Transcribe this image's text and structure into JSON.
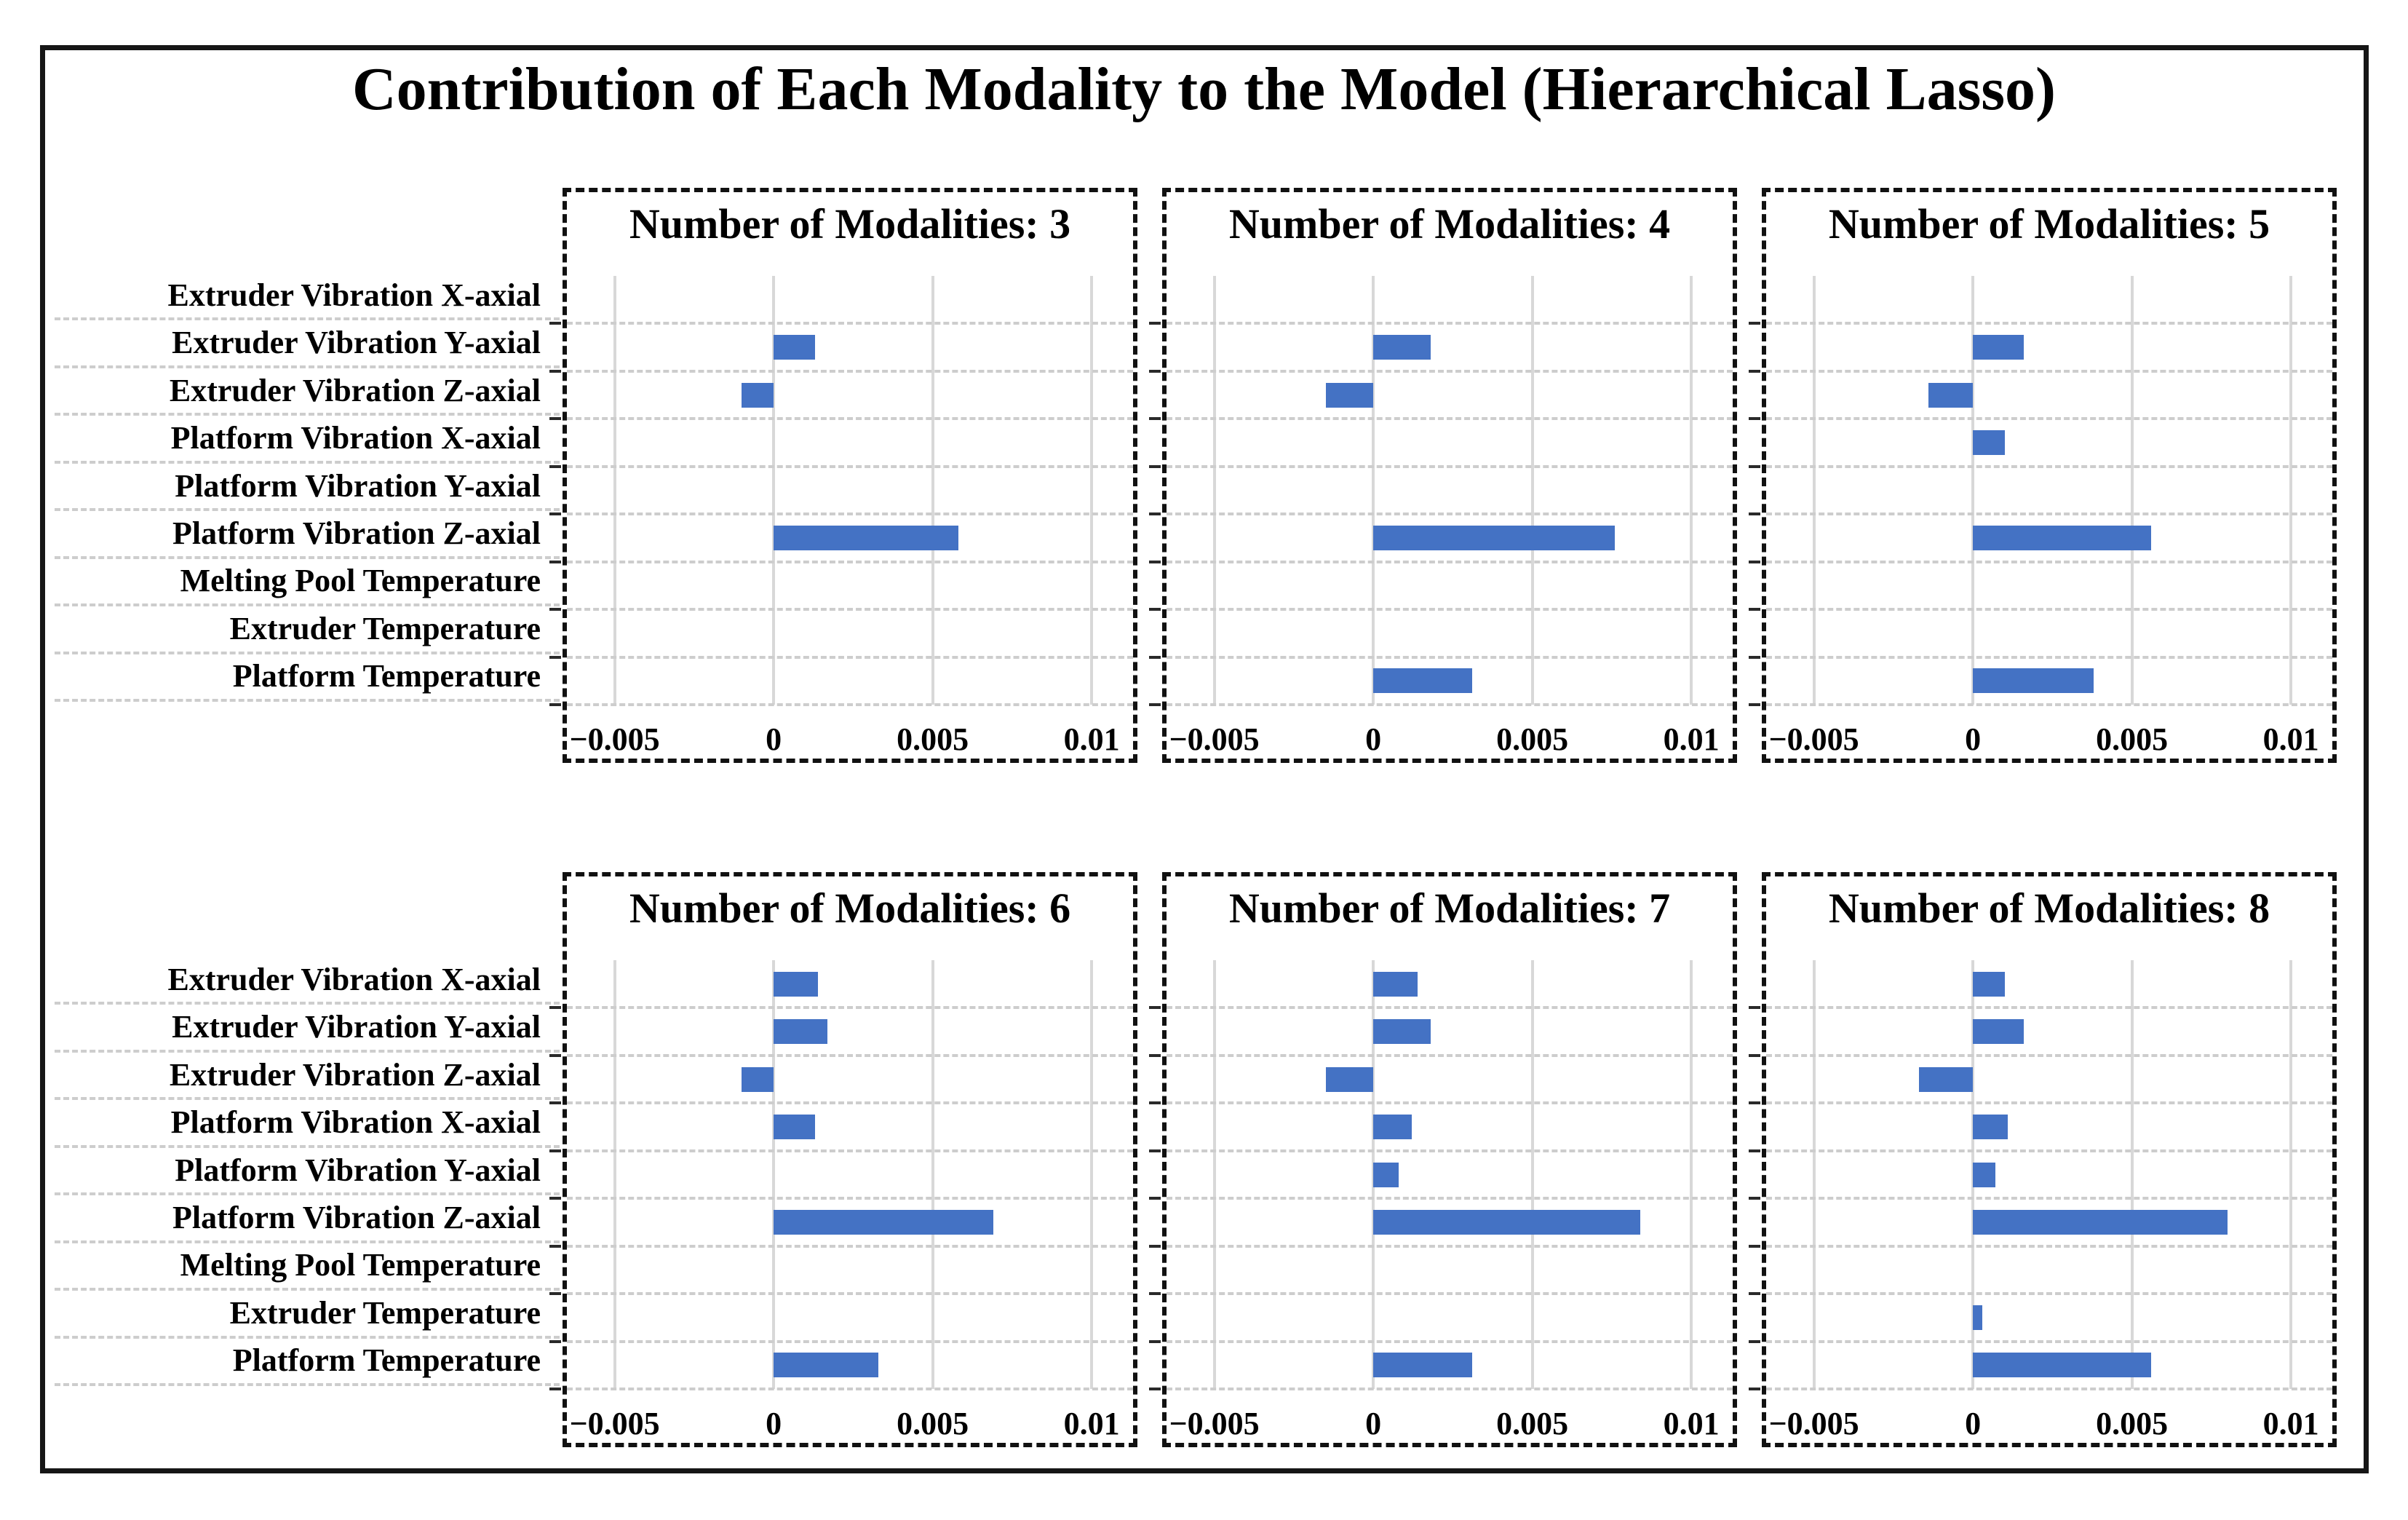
{
  "figure": {
    "title": "Contribution of Each Modality to the Model (Hierarchical Lasso)",
    "colors": {
      "bar": "#4472C4",
      "gridline": "#D8D8D8",
      "dashed_gridline": "#CDCDCD",
      "panel_border": "#111111"
    }
  },
  "chart_data": {
    "type": "bar",
    "orientation": "horizontal",
    "title": "Contribution of Each Modality to the Model (Hierarchical Lasso)",
    "categories": [
      "Extruder Vibration X-axial",
      "Extruder Vibration Y-axial",
      "Extruder Vibration Z-axial",
      "Platform Vibration X-axial",
      "Platform Vibration Y-axial",
      "Platform Vibration Z-axial",
      "Melting Pool Temperature",
      "Extruder Temperature",
      "Platform Temperature"
    ],
    "xlabel": "",
    "ylabel": "",
    "xlim": [
      -0.0065,
      0.0113
    ],
    "x_ticks": [
      -0.005,
      0,
      0.005,
      0.01
    ],
    "x_tick_labels": [
      "−0.005",
      "0",
      "0.005",
      "0.01"
    ],
    "grid": true,
    "subplots": [
      {
        "title": "Number of Modalities: 3",
        "values": [
          0,
          0.0013,
          -0.001,
          0,
          0,
          0.0058,
          0,
          0,
          0
        ]
      },
      {
        "title": "Number of Modalities: 4",
        "values": [
          0,
          0.0018,
          -0.0015,
          0,
          0,
          0.0076,
          0,
          0,
          0.0031
        ]
      },
      {
        "title": "Number of Modalities: 5",
        "values": [
          0,
          0.0016,
          -0.0014,
          0.001,
          0,
          0.0056,
          0,
          0,
          0.0038
        ]
      },
      {
        "title": "Number of Modalities: 6",
        "values": [
          0.0014,
          0.0017,
          -0.001,
          0.0013,
          0,
          0.0069,
          0,
          0,
          0.0033
        ]
      },
      {
        "title": "Number of Modalities: 7",
        "values": [
          0.0014,
          0.0018,
          -0.0015,
          0.0012,
          0.0008,
          0.0084,
          0,
          0,
          0.0031
        ]
      },
      {
        "title": "Number of Modalities: 8",
        "values": [
          0.001,
          0.0016,
          -0.0017,
          0.0011,
          0.0007,
          0.008,
          0,
          0.0003,
          0.0056
        ]
      }
    ]
  }
}
